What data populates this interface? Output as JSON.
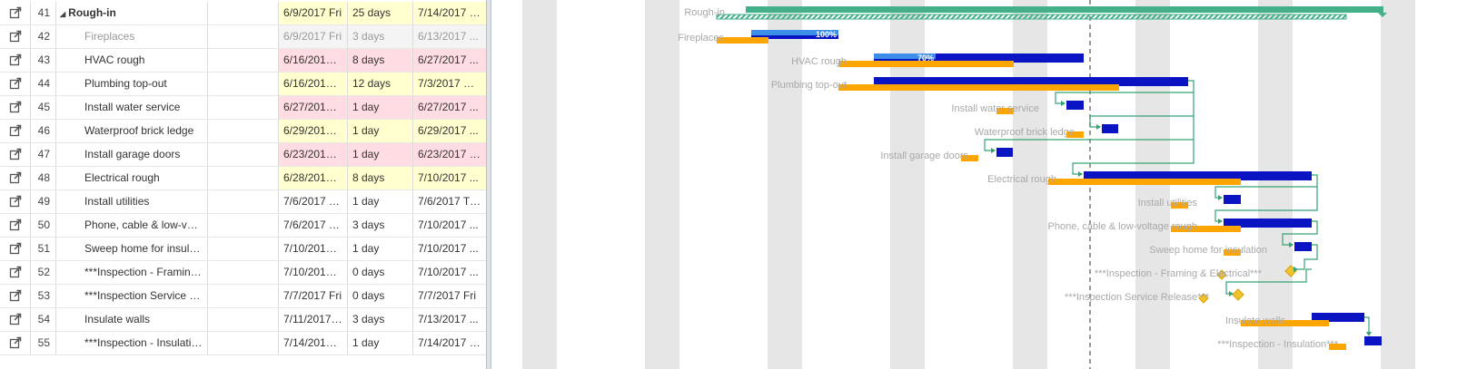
{
  "colors": {
    "summary_bar": "#43b08a",
    "task_blue": "#0a14c2",
    "progress_blue": "#3d8ee8",
    "baseline_orange": "#ffa500",
    "link_green": "#35a374",
    "milestone": "#f2c12e",
    "weekend_stripe": "#e6e6e6",
    "row_yellow": "#ffffcf",
    "row_pink": "#ffdde2",
    "label_grey": "#a8a8a8"
  },
  "rows": [
    {
      "num": "41",
      "name": "Rough-in",
      "start": "6/9/2017 Fri",
      "duration": "25 days",
      "finish": "7/14/2017 Fri",
      "summary": true,
      "muted": false,
      "bg": "yellow"
    },
    {
      "num": "42",
      "name": "Fireplaces",
      "start": "6/9/2017 Fri",
      "duration": "3 days",
      "finish": "6/13/2017 ...",
      "summary": false,
      "muted": true,
      "bg": "grey"
    },
    {
      "num": "43",
      "name": "HVAC rough",
      "start": "6/16/2017 Fri",
      "duration": "8 days",
      "finish": "6/27/2017 ...",
      "summary": false,
      "muted": false,
      "bg": "pink"
    },
    {
      "num": "44",
      "name": "Plumbing top-out",
      "start": "6/16/2017 Fri",
      "duration": "12 days",
      "finish": "7/3/2017 M...",
      "summary": false,
      "muted": false,
      "bg": "yellow"
    },
    {
      "num": "45",
      "name": "Install water service",
      "start": "6/27/2017 ...",
      "duration": "1 day",
      "finish": "6/27/2017 ...",
      "summary": false,
      "muted": false,
      "bg": "pink"
    },
    {
      "num": "46",
      "name": "Waterproof brick ledge",
      "start": "6/29/2017 ...",
      "duration": "1 day",
      "finish": "6/29/2017 ...",
      "summary": false,
      "muted": false,
      "bg": "yellow"
    },
    {
      "num": "47",
      "name": "Install garage doors",
      "start": "6/23/2017 Fri",
      "duration": "1 day",
      "finish": "6/23/2017 Fri",
      "summary": false,
      "muted": false,
      "bg": "pink"
    },
    {
      "num": "48",
      "name": "Electrical rough",
      "start": "6/28/2017 ...",
      "duration": "8 days",
      "finish": "7/10/2017 ...",
      "summary": false,
      "muted": false,
      "bg": "yellow"
    },
    {
      "num": "49",
      "name": "Install utilities",
      "start": "7/6/2017 Thu",
      "duration": "1 day",
      "finish": "7/6/2017 Thu",
      "summary": false,
      "muted": false,
      "bg": ""
    },
    {
      "num": "50",
      "name": "Phone, cable & low-volta...",
      "start": "7/6/2017 Thu",
      "duration": "3 days",
      "finish": "7/10/2017 ...",
      "summary": false,
      "muted": false,
      "bg": ""
    },
    {
      "num": "51",
      "name": "Sweep home for insulation",
      "start": "7/10/2017 ...",
      "duration": "1 day",
      "finish": "7/10/2017 ...",
      "summary": false,
      "muted": false,
      "bg": ""
    },
    {
      "num": "52",
      "name": "***Inspection - Framing ...",
      "start": "7/10/2017 ...",
      "duration": "0 days",
      "finish": "7/10/2017 ...",
      "summary": false,
      "muted": false,
      "bg": ""
    },
    {
      "num": "53",
      "name": "***Inspection Service Re...",
      "start": "7/7/2017 Fri",
      "duration": "0 days",
      "finish": "7/7/2017 Fri",
      "summary": false,
      "muted": false,
      "bg": ""
    },
    {
      "num": "54",
      "name": "Insulate walls",
      "start": "7/11/2017 ...",
      "duration": "3 days",
      "finish": "7/13/2017 ...",
      "summary": false,
      "muted": false,
      "bg": ""
    },
    {
      "num": "55",
      "name": "***Inspection - Insulatio...",
      "start": "7/14/2017 Fri",
      "duration": "1 day",
      "finish": "7/14/2017 Fri",
      "summary": false,
      "muted": false,
      "bg": ""
    }
  ],
  "gantt": {
    "labels": [
      "Rough-in",
      "Fireplaces",
      "HVAC rough",
      "Plumbing top-out",
      "Install water service",
      "Waterproof brick ledge",
      "Install garage doors",
      "Electrical rough",
      "Install utilities",
      "Phone, cable & low-voltage rough",
      "Sweep home for insulation",
      "***Inspection - Framing & Electrical***",
      "***Inspection Service Release***",
      "Insulate walls",
      "***Inspection - Insulation***"
    ],
    "progress_labels": [
      "100%",
      "70%"
    ]
  }
}
